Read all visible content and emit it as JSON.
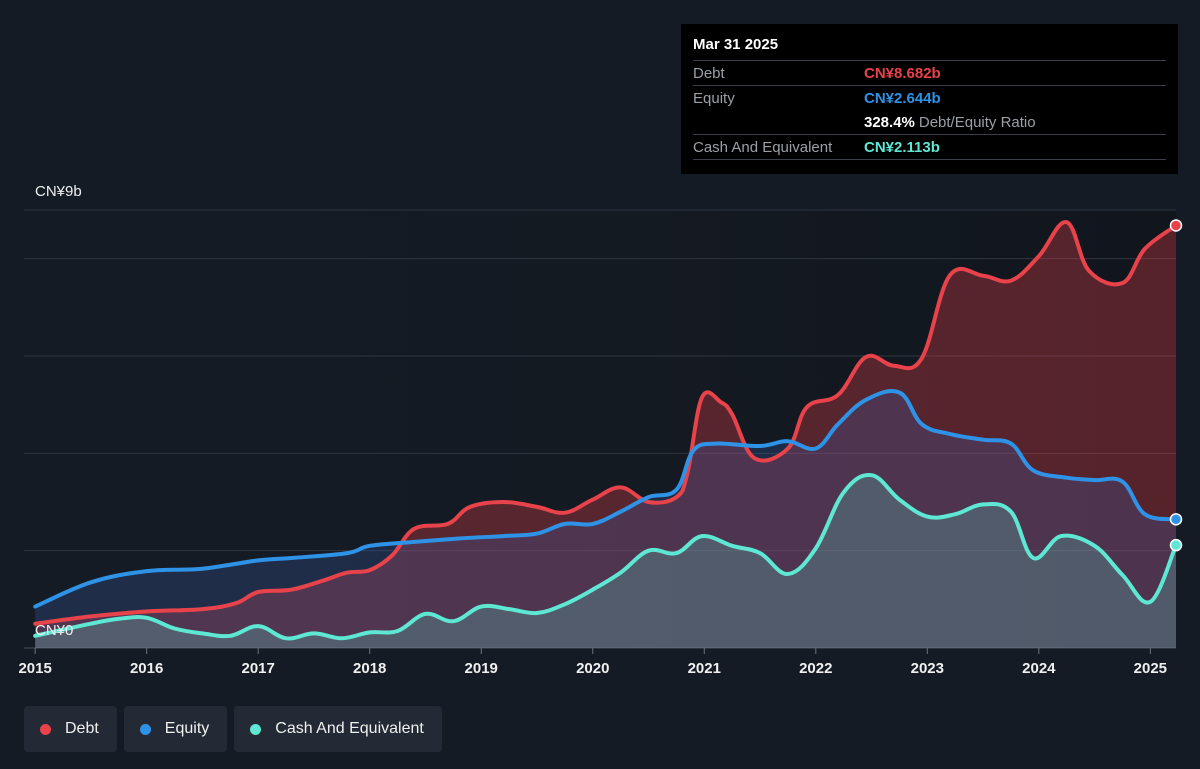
{
  "chart_data": {
    "type": "area",
    "y_axis": {
      "top_label": "CN¥9b",
      "bottom_label": "CN¥0",
      "ylim": [
        0,
        9
      ]
    },
    "x_ticks": [
      "2015",
      "2016",
      "2017",
      "2018",
      "2019",
      "2020",
      "2021",
      "2022",
      "2023",
      "2024",
      "2025"
    ],
    "x_range": [
      2014.9,
      2025.23
    ],
    "gridlines": [
      0,
      2,
      4,
      6,
      8,
      9
    ],
    "series": [
      {
        "name": "Debt",
        "color": "#e8424a",
        "points": [
          [
            2015.0,
            0.5
          ],
          [
            2015.5,
            0.65
          ],
          [
            2016.0,
            0.75
          ],
          [
            2016.5,
            0.8
          ],
          [
            2016.8,
            0.92
          ],
          [
            2017.0,
            1.15
          ],
          [
            2017.3,
            1.2
          ],
          [
            2017.6,
            1.4
          ],
          [
            2017.8,
            1.55
          ],
          [
            2018.0,
            1.6
          ],
          [
            2018.2,
            1.9
          ],
          [
            2018.4,
            2.45
          ],
          [
            2018.7,
            2.55
          ],
          [
            2018.9,
            2.9
          ],
          [
            2019.2,
            3.0
          ],
          [
            2019.5,
            2.9
          ],
          [
            2019.75,
            2.78
          ],
          [
            2020.0,
            3.05
          ],
          [
            2020.25,
            3.3
          ],
          [
            2020.5,
            3.0
          ],
          [
            2020.75,
            3.1
          ],
          [
            2020.85,
            3.6
          ],
          [
            2020.98,
            5.15
          ],
          [
            2021.15,
            5.05
          ],
          [
            2021.25,
            4.8
          ],
          [
            2021.45,
            3.9
          ],
          [
            2021.75,
            4.1
          ],
          [
            2021.92,
            4.95
          ],
          [
            2022.2,
            5.2
          ],
          [
            2022.45,
            5.98
          ],
          [
            2022.7,
            5.8
          ],
          [
            2022.95,
            5.95
          ],
          [
            2023.2,
            7.65
          ],
          [
            2023.5,
            7.65
          ],
          [
            2023.75,
            7.55
          ],
          [
            2024.0,
            8.05
          ],
          [
            2024.25,
            8.75
          ],
          [
            2024.45,
            7.75
          ],
          [
            2024.75,
            7.5
          ],
          [
            2024.95,
            8.2
          ],
          [
            2025.23,
            8.682
          ]
        ]
      },
      {
        "name": "Equity",
        "color": "#2e93e6",
        "points": [
          [
            2015.0,
            0.85
          ],
          [
            2015.5,
            1.35
          ],
          [
            2016.0,
            1.58
          ],
          [
            2016.5,
            1.63
          ],
          [
            2017.0,
            1.8
          ],
          [
            2017.3,
            1.85
          ],
          [
            2017.8,
            1.95
          ],
          [
            2018.0,
            2.1
          ],
          [
            2018.4,
            2.18
          ],
          [
            2018.8,
            2.25
          ],
          [
            2019.2,
            2.3
          ],
          [
            2019.5,
            2.35
          ],
          [
            2019.75,
            2.55
          ],
          [
            2020.0,
            2.55
          ],
          [
            2020.25,
            2.8
          ],
          [
            2020.5,
            3.1
          ],
          [
            2020.75,
            3.25
          ],
          [
            2020.9,
            4.05
          ],
          [
            2021.1,
            4.2
          ],
          [
            2021.5,
            4.15
          ],
          [
            2021.75,
            4.25
          ],
          [
            2022.0,
            4.1
          ],
          [
            2022.2,
            4.6
          ],
          [
            2022.45,
            5.1
          ],
          [
            2022.75,
            5.25
          ],
          [
            2022.95,
            4.6
          ],
          [
            2023.2,
            4.4
          ],
          [
            2023.5,
            4.28
          ],
          [
            2023.75,
            4.2
          ],
          [
            2023.95,
            3.65
          ],
          [
            2024.25,
            3.5
          ],
          [
            2024.5,
            3.45
          ],
          [
            2024.75,
            3.42
          ],
          [
            2024.95,
            2.75
          ],
          [
            2025.23,
            2.644
          ]
        ]
      },
      {
        "name": "Cash And Equivalent",
        "color": "#5ee8d3",
        "points": [
          [
            2015.0,
            0.25
          ],
          [
            2015.5,
            0.5
          ],
          [
            2015.75,
            0.6
          ],
          [
            2016.0,
            0.62
          ],
          [
            2016.25,
            0.4
          ],
          [
            2016.5,
            0.3
          ],
          [
            2016.75,
            0.25
          ],
          [
            2017.0,
            0.45
          ],
          [
            2017.25,
            0.2
          ],
          [
            2017.5,
            0.3
          ],
          [
            2017.75,
            0.2
          ],
          [
            2018.0,
            0.32
          ],
          [
            2018.25,
            0.35
          ],
          [
            2018.5,
            0.7
          ],
          [
            2018.75,
            0.55
          ],
          [
            2019.0,
            0.85
          ],
          [
            2019.25,
            0.8
          ],
          [
            2019.5,
            0.72
          ],
          [
            2019.75,
            0.9
          ],
          [
            2020.0,
            1.2
          ],
          [
            2020.25,
            1.55
          ],
          [
            2020.5,
            2.0
          ],
          [
            2020.75,
            1.95
          ],
          [
            2020.98,
            2.3
          ],
          [
            2021.25,
            2.1
          ],
          [
            2021.5,
            1.95
          ],
          [
            2021.75,
            1.52
          ],
          [
            2022.0,
            2.05
          ],
          [
            2022.25,
            3.2
          ],
          [
            2022.5,
            3.55
          ],
          [
            2022.75,
            3.05
          ],
          [
            2023.0,
            2.7
          ],
          [
            2023.25,
            2.75
          ],
          [
            2023.5,
            2.95
          ],
          [
            2023.75,
            2.8
          ],
          [
            2023.95,
            1.85
          ],
          [
            2024.2,
            2.3
          ],
          [
            2024.5,
            2.1
          ],
          [
            2024.75,
            1.5
          ],
          [
            2025.0,
            0.95
          ],
          [
            2025.23,
            2.113
          ]
        ]
      }
    ]
  },
  "tooltip": {
    "date": "Mar 31 2025",
    "rows": [
      {
        "label": "Debt",
        "value": "CN¥8.682b",
        "color": "#e8424a"
      },
      {
        "label": "Equity",
        "value": "CN¥2.644b",
        "color": "#2e93e6"
      },
      {
        "ratio_value": "328.4%",
        "ratio_label": "Debt/Equity Ratio"
      },
      {
        "label": "Cash And Equivalent",
        "value": "CN¥2.113b",
        "color": "#5ee8d3"
      }
    ]
  },
  "legend": [
    {
      "label": "Debt",
      "color": "#e8424a"
    },
    {
      "label": "Equity",
      "color": "#2e93e6"
    },
    {
      "label": "Cash And Equivalent",
      "color": "#5ee8d3"
    }
  ]
}
